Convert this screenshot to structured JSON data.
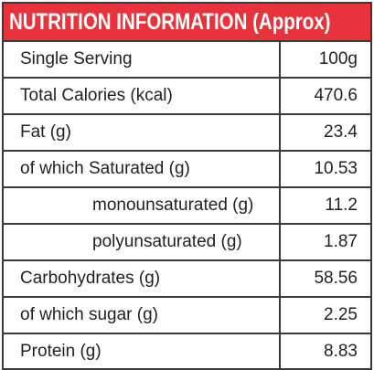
{
  "header": {
    "title": "NUTRITION INFORMATION (Approx)"
  },
  "table": {
    "rows": [
      [
        "Single Serving",
        "100g"
      ],
      [
        "Total Calories (kcal)",
        "470.6"
      ],
      [
        "Fat (g)",
        "23.4"
      ],
      [
        "of which Saturated (g)",
        "10.53"
      ],
      [
        "monounsaturated (g)",
        "11.2"
      ],
      [
        "polyunsaturated (g)",
        "1.87"
      ],
      [
        "Carbohydrates (g)",
        "58.56"
      ],
      [
        "of which sugar (g)",
        "2.25"
      ],
      [
        "Protein (g)",
        "8.83"
      ]
    ]
  }
}
